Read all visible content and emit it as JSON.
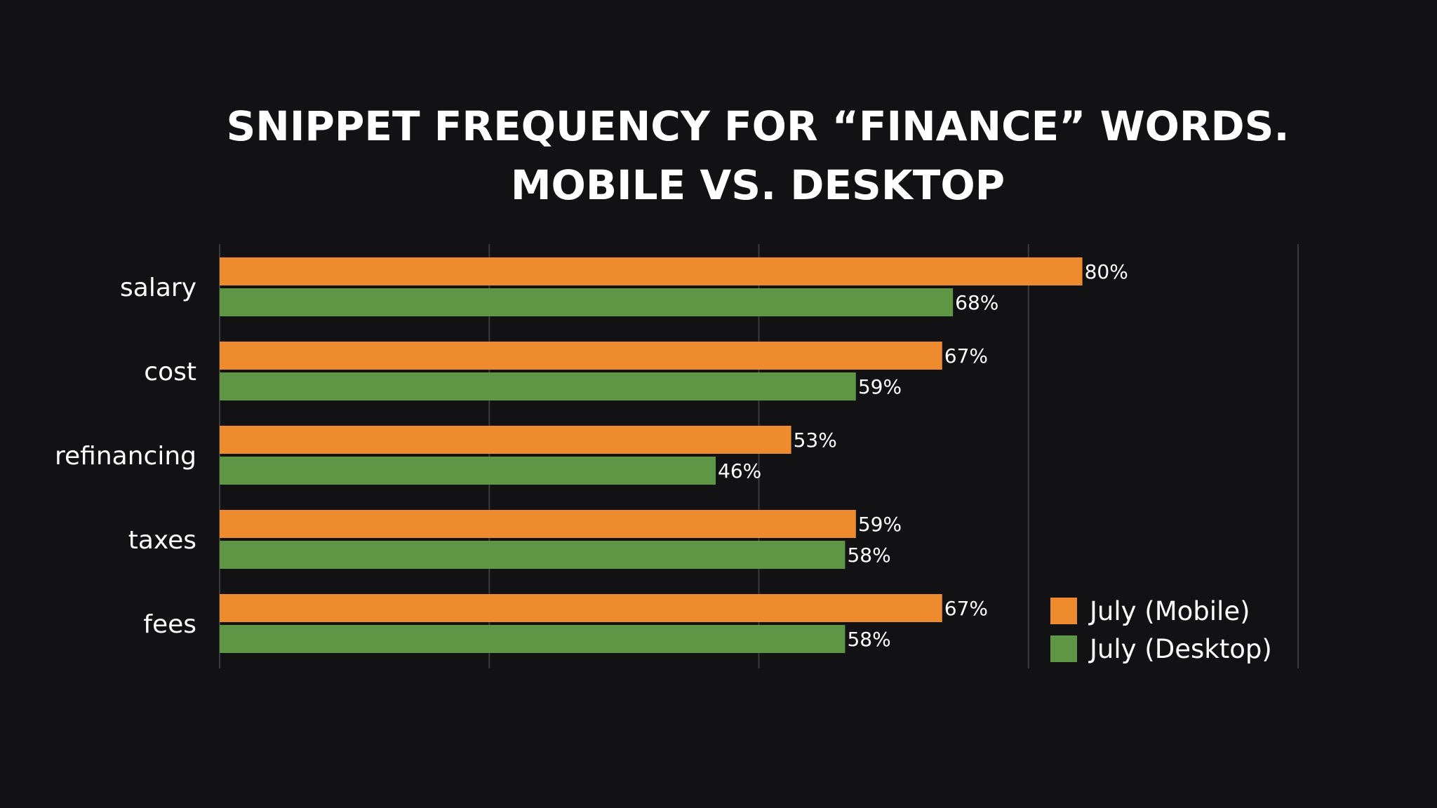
{
  "chart_data": {
    "type": "bar",
    "orientation": "horizontal",
    "title_line1": "SNIPPET FREQUENCY FOR “FINANCE” WORDS.",
    "title_line2": "MOBILE VS. DESKTOP",
    "categories": [
      "salary",
      "cost",
      "refinancing",
      "taxes",
      "fees"
    ],
    "series": [
      {
        "name": "July (Mobile)",
        "color": "#ed8b2e",
        "values": [
          80,
          67,
          53,
          59,
          67
        ],
        "labels": [
          "80%",
          "67%",
          "53%",
          "59%",
          "67%"
        ]
      },
      {
        "name": "July (Desktop)",
        "color": "#5e9646",
        "values": [
          68,
          59,
          46,
          58,
          58
        ],
        "labels": [
          "68%",
          "59%",
          "46%",
          "58%",
          "58%"
        ]
      }
    ],
    "xlim": [
      0,
      100
    ],
    "grid": true,
    "grid_color": "#3a3a3c",
    "legend_position": "bottom-right",
    "background": "#121214"
  }
}
